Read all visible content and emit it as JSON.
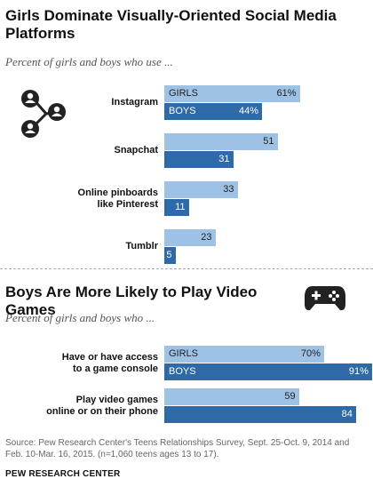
{
  "chart_data": [
    {
      "type": "bar",
      "orientation": "horizontal",
      "title": "Girls Dominate Visually-Oriented Social Media Platforms",
      "subtitle": "Percent of girls and boys who use ...",
      "categories": [
        "Instagram",
        "Snapchat",
        "Online pinboards like Pinterest",
        "Tumblr"
      ],
      "series": [
        {
          "name": "GIRLS",
          "values": [
            61,
            51,
            33,
            23
          ],
          "color": "#9dc2e6"
        },
        {
          "name": "BOYS",
          "values": [
            44,
            31,
            11,
            5
          ],
          "color": "#2f6aa8"
        }
      ],
      "value_labels": {
        "girls": [
          "61%",
          "51",
          "33",
          "23"
        ],
        "boys": [
          "44%",
          "31",
          "11",
          "5"
        ]
      },
      "xlim": [
        0,
        100
      ],
      "grid": false,
      "legend": "inside-first-bars"
    },
    {
      "type": "bar",
      "orientation": "horizontal",
      "title": "Boys Are More Likely to Play Video Games",
      "subtitle": "Percent of girls and boys who ...",
      "categories": [
        "Have or have access to a game console",
        "Play video games online or on their phone"
      ],
      "series": [
        {
          "name": "GIRLS",
          "values": [
            70,
            59
          ],
          "color": "#9dc2e6"
        },
        {
          "name": "BOYS",
          "values": [
            91,
            84
          ],
          "color": "#2f6aa8"
        }
      ],
      "value_labels": {
        "girls": [
          "70%",
          "59"
        ],
        "boys": [
          "91%",
          "84"
        ]
      },
      "xlim": [
        0,
        100
      ],
      "grid": false,
      "legend": "inside-first-bars"
    }
  ],
  "labels": {
    "chart1": {
      "title": "Girls Dominate Visually-Oriented Social Media Platforms",
      "subtitle": "Percent of girls and boys who use ...",
      "categories": [
        "Instagram",
        "Snapchat",
        "Online pinboards like Pinterest",
        "Tumblr"
      ],
      "cat_lines": [
        [
          "Instagram"
        ],
        [
          "Snapchat"
        ],
        [
          "Online pinboards",
          "like Pinterest"
        ],
        [
          "Tumblr"
        ]
      ]
    },
    "chart2": {
      "title": "Boys Are More Likely to Play Video Games",
      "subtitle": "Percent of girls and boys who ...",
      "cat_lines": [
        [
          "Have or have access",
          "to a game console"
        ],
        [
          "Play video games",
          "online or on their phone"
        ]
      ]
    },
    "girls": "GIRLS",
    "boys": "BOYS"
  },
  "icons": {
    "social": "social-network-icon",
    "game": "game-controller-icon"
  },
  "footer": {
    "source": "Source: Pew Research Center's Teens Relationships Survey, Sept. 25-Oct. 9, 2014 and Feb. 10-Mar. 16, 2015. (n=1,060 teens ages 13 to 17).",
    "credit": "PEW RESEARCH CENTER"
  }
}
